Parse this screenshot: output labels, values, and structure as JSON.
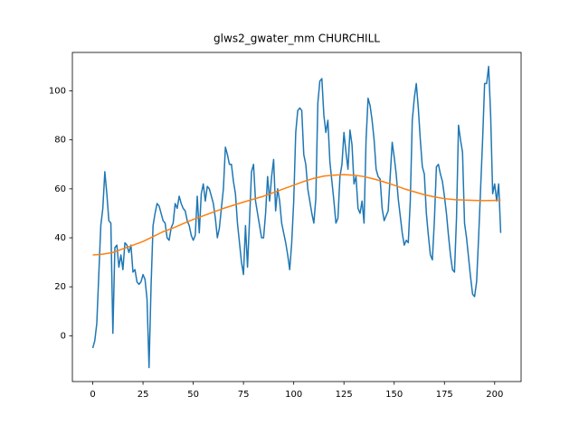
{
  "chart_data": {
    "type": "line",
    "title": "glws2_gwater_mm CHURCHILL",
    "xlim": [
      -10.15,
      213.15
    ],
    "ylim": [
      -18.7,
      115.7
    ],
    "xticks": [
      0,
      25,
      50,
      75,
      100,
      125,
      150,
      175,
      200
    ],
    "yticks": [
      0,
      20,
      40,
      60,
      80,
      100
    ],
    "series": [
      {
        "color": "#1f77b4",
        "x": [
          0,
          1,
          2,
          3,
          4,
          5,
          6,
          7,
          8,
          9,
          10,
          11,
          12,
          13,
          14,
          15,
          16,
          17,
          18,
          19,
          20,
          21,
          22,
          23,
          24,
          25,
          26,
          27,
          28,
          29,
          30,
          31,
          32,
          33,
          34,
          35,
          36,
          37,
          38,
          39,
          40,
          41,
          42,
          43,
          44,
          45,
          46,
          47,
          48,
          49,
          50,
          51,
          52,
          53,
          54,
          55,
          56,
          57,
          58,
          59,
          60,
          61,
          62,
          63,
          64,
          65,
          66,
          67,
          68,
          69,
          70,
          71,
          72,
          73,
          74,
          75,
          76,
          77,
          78,
          79,
          80,
          81,
          82,
          83,
          84,
          85,
          86,
          87,
          88,
          89,
          90,
          91,
          92,
          93,
          94,
          95,
          96,
          97,
          98,
          99,
          100,
          101,
          102,
          103,
          104,
          105,
          106,
          107,
          108,
          109,
          110,
          111,
          112,
          113,
          114,
          115,
          116,
          117,
          118,
          119,
          120,
          121,
          122,
          123,
          124,
          125,
          126,
          127,
          128,
          129,
          130,
          131,
          132,
          133,
          134,
          135,
          136,
          137,
          138,
          139,
          140,
          141,
          142,
          143,
          144,
          145,
          146,
          147,
          148,
          149,
          150,
          151,
          152,
          153,
          154,
          155,
          156,
          157,
          158,
          159,
          160,
          161,
          162,
          163,
          164,
          165,
          166,
          167,
          168,
          169,
          170,
          171,
          172,
          173,
          174,
          175,
          176,
          177,
          178,
          179,
          180,
          181,
          182,
          183,
          184,
          185,
          186,
          187,
          188,
          189,
          190,
          191,
          192,
          193,
          194,
          195,
          196,
          197,
          198,
          199,
          200,
          201,
          202,
          203
        ],
        "values": [
          -5,
          -2,
          5,
          25,
          45,
          52,
          67,
          58,
          47,
          46,
          1,
          36,
          37,
          28,
          33,
          27,
          38,
          37,
          34,
          37,
          26,
          27,
          22,
          21,
          22,
          25,
          23,
          15,
          -13,
          20,
          45,
          50,
          54,
          53,
          50,
          47,
          46,
          40,
          39,
          44,
          46,
          54,
          52,
          57,
          54,
          52,
          51,
          47,
          45,
          41,
          39,
          41,
          57,
          42,
          58,
          62,
          55,
          61,
          60,
          57,
          54,
          48,
          40,
          44,
          52,
          60,
          77,
          74,
          70,
          70,
          63,
          58,
          46,
          38,
          30,
          25,
          45,
          28,
          47,
          67,
          70,
          55,
          50,
          45,
          40,
          40,
          50,
          65,
          55,
          65,
          72,
          51,
          60,
          55,
          46,
          42,
          38,
          33,
          27,
          38,
          55,
          83,
          92,
          93,
          92,
          74,
          70,
          60,
          55,
          50,
          46,
          56,
          95,
          104,
          105,
          90,
          83,
          88,
          71,
          63,
          55,
          46,
          48,
          65,
          70,
          83,
          75,
          68,
          84,
          78,
          62,
          65,
          52,
          50,
          55,
          46,
          80,
          97,
          94,
          88,
          80,
          68,
          65,
          64,
          52,
          47,
          49,
          51,
          65,
          79,
          73,
          66,
          56,
          49,
          42,
          37,
          39,
          38,
          55,
          88,
          97,
          103,
          93,
          80,
          69,
          66,
          50,
          41,
          33,
          31,
          47,
          69,
          70,
          66,
          63,
          57,
          50,
          41,
          33,
          27,
          26,
          48,
          86,
          80,
          75,
          46,
          40,
          32,
          24,
          17,
          16,
          22,
          40,
          60,
          80,
          103,
          103,
          110,
          90,
          58,
          62,
          55,
          62,
          42
        ]
      },
      {
        "color": "#ff7f0e",
        "x": [
          0,
          5,
          10,
          15,
          20,
          25,
          30,
          35,
          40,
          45,
          50,
          55,
          60,
          65,
          70,
          75,
          80,
          85,
          90,
          95,
          100,
          105,
          110,
          115,
          120,
          125,
          130,
          135,
          140,
          145,
          150,
          155,
          160,
          165,
          170,
          175,
          180,
          185,
          190,
          195,
          200,
          203
        ],
        "values": [
          33,
          33.3,
          34,
          35.5,
          37,
          38.5,
          40.5,
          42.5,
          44,
          45.8,
          47.5,
          49,
          50.5,
          52,
          53.3,
          54.6,
          55.8,
          57,
          58.5,
          60,
          61.5,
          63,
          64.3,
          65.2,
          65.6,
          65.8,
          65.6,
          65,
          64,
          62.8,
          61.5,
          60,
          58.8,
          57.6,
          56.7,
          56,
          55.6,
          55.4,
          55.3,
          55.2,
          55.3,
          55.4
        ]
      }
    ]
  }
}
